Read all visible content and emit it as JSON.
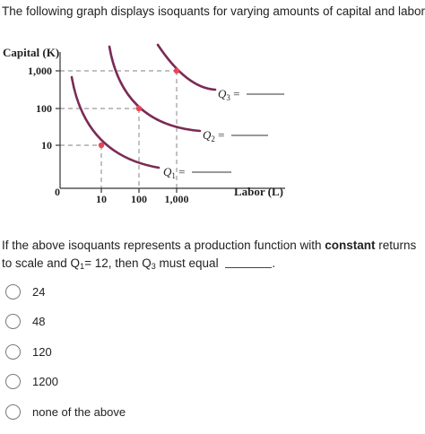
{
  "intro_text": "The following graph displays isoquants for varying amounts of capital and labor.",
  "chart_data": {
    "type": "line",
    "ylabel": "Capital (K)",
    "xlabel": "Labor (L)",
    "scale": "log",
    "x_ticks": [
      "10",
      "100",
      "1,000"
    ],
    "y_ticks": [
      "1,000",
      "100",
      "10"
    ],
    "origin_label": "0",
    "series": [
      {
        "name": "Q1 =",
        "highlight_point": {
          "x": 10,
          "y": 10
        }
      },
      {
        "name": "Q2 =",
        "highlight_point": {
          "x": 100,
          "y": 100
        }
      },
      {
        "name": "Q3 =",
        "highlight_point": {
          "x": 1000,
          "y": 1000
        }
      }
    ],
    "colors": {
      "curve": "#7b2b55",
      "point": "#e8455a",
      "guide": "#9a9a9a",
      "axis": "#333333"
    }
  },
  "question": {
    "part1": "If the above isoquants represents a production function with ",
    "emphasis": "constant",
    "part2": " returns to scale and Q",
    "q1_sub": "1",
    "part3": "= 12, then Q",
    "q3_sub": "3",
    "part4": " must equal ",
    "end": "."
  },
  "options": [
    {
      "label": "24"
    },
    {
      "label": "48"
    },
    {
      "label": "120"
    },
    {
      "label": "1200"
    },
    {
      "label": "none of the above"
    }
  ]
}
